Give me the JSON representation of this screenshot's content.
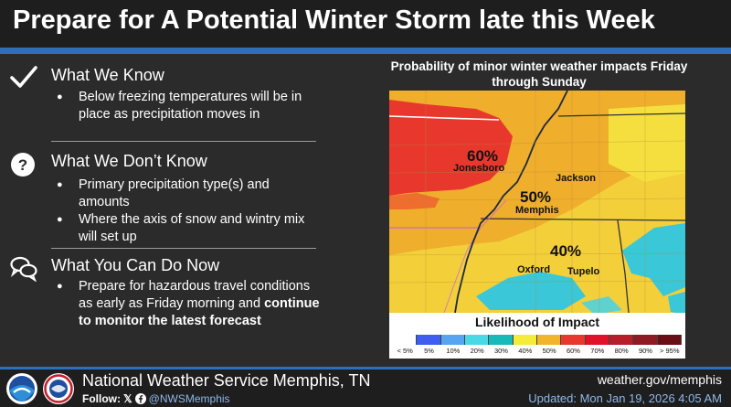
{
  "header": {
    "title": "Prepare for A Potential Winter Storm late this Week"
  },
  "sections": [
    {
      "title": "What We Know",
      "icon": "checkmark-icon",
      "bullets": [
        "Below freezing temperatures will be in place as precipitation moves in"
      ]
    },
    {
      "title": "What We Don’t Know",
      "icon": "question-icon",
      "bullets": [
        "Primary precipitation type(s) and amounts",
        "Where the axis of snow and wintry mix will set up"
      ]
    },
    {
      "title": "What You Can Do Now",
      "icon": "speech-bubbles-icon",
      "bullet_plain": "Prepare for hazardous travel conditions as early as Friday morning and ",
      "bullet_bold": "continue to monitor the latest forecast"
    }
  ],
  "map": {
    "caption": "Probability of minor winter weather impacts Friday through Sunday",
    "zones": [
      {
        "value": "60%",
        "city": "Jonesboro"
      },
      {
        "value": "50%",
        "city": "Memphis"
      },
      {
        "value": "40%",
        "city": "Tupelo"
      }
    ],
    "other_cities": [
      "Jackson",
      "Oxford"
    ],
    "legend": {
      "title": "Likelihood of Impact",
      "bins": [
        "< 5%",
        "5%",
        "10%",
        "20%",
        "30%",
        "40%",
        "50%",
        "60%",
        "70%",
        "80%",
        "90%",
        "> 95%"
      ],
      "colors": [
        "#ffffff",
        "#3d5ef0",
        "#57a5f0",
        "#48d9e6",
        "#17b9b9",
        "#f5ec3a",
        "#f0b52c",
        "#e8382d",
        "#e0122a",
        "#b81d2a",
        "#8e1b24",
        "#6a0e16"
      ]
    }
  },
  "footer": {
    "office": "National Weather Service Memphis, TN",
    "follow_label": "Follow:",
    "handle": "@NWSMemphis",
    "website": "weather.gov/memphis",
    "updated": "Updated: Mon Jan 19, 2026 4:05 AM"
  }
}
